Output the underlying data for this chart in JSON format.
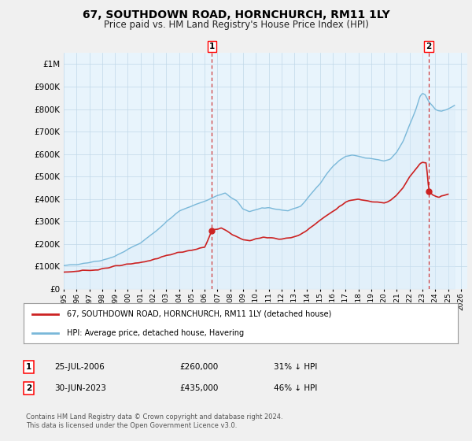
{
  "title": "67, SOUTHDOWN ROAD, HORNCHURCH, RM11 1LY",
  "subtitle": "Price paid vs. HM Land Registry's House Price Index (HPI)",
  "ylim": [
    0,
    1050000
  ],
  "yticks": [
    0,
    100000,
    200000,
    300000,
    400000,
    500000,
    600000,
    700000,
    800000,
    900000,
    1000000
  ],
  "ytick_labels": [
    "£0",
    "£100K",
    "£200K",
    "£300K",
    "£400K",
    "£500K",
    "£600K",
    "£700K",
    "£800K",
    "£900K",
    "£1M"
  ],
  "hpi_color": "#7ab8d9",
  "hpi_fill_color": "#d6eaf8",
  "price_color": "#cc2222",
  "annotation_color": "#cc2222",
  "background_color": "#f0f0f0",
  "plot_bg_color": "#e8f4fc",
  "grid_color": "#c0d8e8",
  "legend_label_price": "67, SOUTHDOWN ROAD, HORNCHURCH, RM11 1LY (detached house)",
  "legend_label_hpi": "HPI: Average price, detached house, Havering",
  "ann1_x": 2006.57,
  "ann1_y": 260000,
  "ann1_label": "1",
  "ann1_date": "25-JUL-2006",
  "ann1_price": "£260,000",
  "ann1_pct": "31% ↓ HPI",
  "ann2_x": 2023.5,
  "ann2_y": 435000,
  "ann2_label": "2",
  "ann2_date": "30-JUN-2023",
  "ann2_price": "£435,000",
  "ann2_pct": "46% ↓ HPI",
  "footer": "Contains HM Land Registry data © Crown copyright and database right 2024.\nThis data is licensed under the Open Government Licence v3.0.",
  "xmin": 1995.0,
  "xmax": 2026.5,
  "xtick_years": [
    1995,
    1996,
    1997,
    1998,
    1999,
    2000,
    2001,
    2002,
    2003,
    2004,
    2005,
    2006,
    2007,
    2008,
    2009,
    2010,
    2011,
    2012,
    2013,
    2014,
    2015,
    2016,
    2017,
    2018,
    2019,
    2020,
    2021,
    2022,
    2023,
    2024,
    2025,
    2026
  ]
}
